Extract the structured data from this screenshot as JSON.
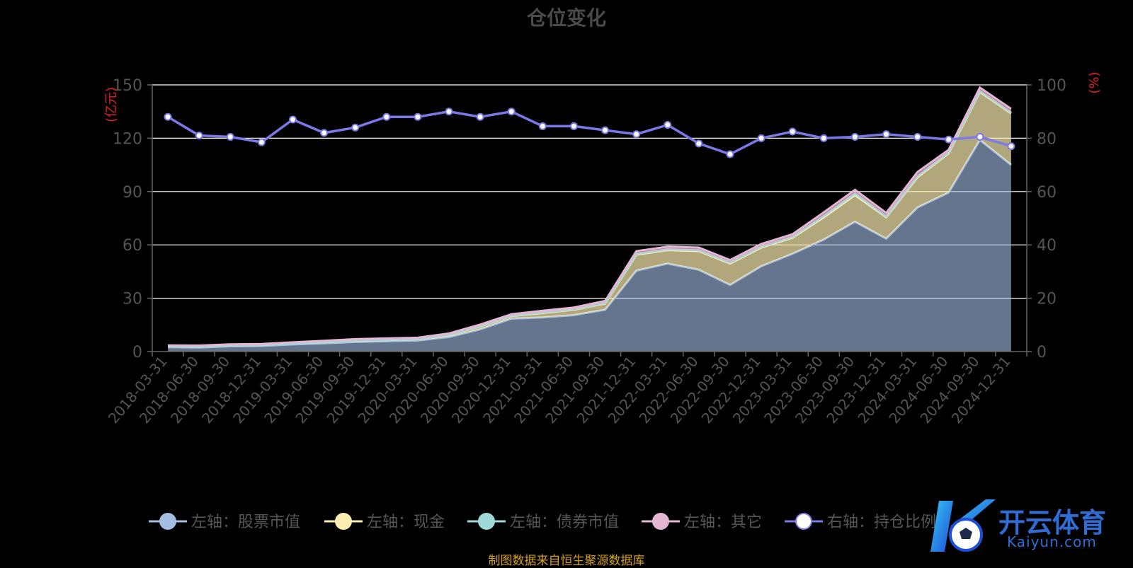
{
  "chart_data": {
    "type": "area",
    "title": "仓位变化",
    "ylabel_left": "(亿元)",
    "ylabel_right": "(%)",
    "y_left_lim": [
      0,
      150
    ],
    "y_left_ticks": [
      0,
      30,
      60,
      90,
      120,
      150
    ],
    "y_right_lim": [
      0,
      100
    ],
    "y_right_ticks": [
      0,
      20,
      40,
      60,
      80,
      100
    ],
    "stacked": true,
    "grid": true,
    "legend_position": "bottom",
    "categories": [
      "2018-03-31",
      "2018-06-30",
      "2018-09-30",
      "2018-12-31",
      "2019-03-31",
      "2019-06-30",
      "2019-09-30",
      "2019-12-31",
      "2020-03-31",
      "2020-06-30",
      "2020-09-30",
      "2020-12-31",
      "2021-03-31",
      "2021-06-30",
      "2021-09-30",
      "2021-12-31",
      "2022-03-31",
      "2022-06-30",
      "2022-09-30",
      "2022-12-31",
      "2023-03-31",
      "2023-06-30",
      "2023-09-30",
      "2023-12-31",
      "2024-03-31",
      "2024-06-30",
      "2024-09-30",
      "2024-12-31"
    ],
    "series": [
      {
        "name": "左轴：股票市值",
        "axis": "left",
        "color": "#a3bde3",
        "values": [
          2.5,
          2.3,
          3.0,
          3.2,
          4.0,
          4.6,
          5.4,
          5.8,
          6.2,
          8.2,
          12.5,
          18.5,
          19.2,
          20.5,
          23.5,
          45.5,
          49.5,
          46.0,
          37.5,
          48.0,
          55.0,
          63.0,
          73.0,
          63.5,
          81.0,
          89.5,
          119.0,
          105.0
        ]
      },
      {
        "name": "左轴：现金",
        "axis": "left",
        "color": "#fdedb1",
        "values": [
          0.5,
          0.5,
          0.5,
          0.5,
          0.6,
          0.8,
          0.8,
          0.8,
          0.8,
          1.2,
          1.6,
          1.5,
          2.5,
          3.0,
          3.5,
          9.0,
          7.5,
          10.5,
          12.0,
          10.5,
          9.0,
          12.5,
          15.0,
          12.0,
          17.0,
          22.0,
          27.0,
          29.0
        ]
      },
      {
        "name": "左轴：债券市值",
        "axis": "left",
        "color": "#9fd9d8",
        "values": [
          0.1,
          0.1,
          0.1,
          0.1,
          0.1,
          0.1,
          0.1,
          0.1,
          0.1,
          0.1,
          0.2,
          0.2,
          0.3,
          0.3,
          0.3,
          0.5,
          0.5,
          0.5,
          0.5,
          0.5,
          0.5,
          0.8,
          1.0,
          0.5,
          0.6,
          0.5,
          0.5,
          0.5
        ]
      },
      {
        "name": "左轴：其它",
        "axis": "left",
        "color": "#e5b6d3",
        "values": [
          0.4,
          0.5,
          0.5,
          0.5,
          0.5,
          0.6,
          0.7,
          0.7,
          0.7,
          0.7,
          0.9,
          0.8,
          1.0,
          1.0,
          1.2,
          1.5,
          1.5,
          1.5,
          1.5,
          1.5,
          1.5,
          2.0,
          2.0,
          2.0,
          2.4,
          1.5,
          2.0,
          2.0
        ]
      },
      {
        "name": "右轴：持仓比例",
        "axis": "right",
        "color": "#7b79e8",
        "type": "line",
        "values": [
          88,
          81,
          80.5,
          78.5,
          87,
          82,
          84,
          88,
          88,
          90,
          88,
          90,
          84.5,
          84.5,
          83,
          81.5,
          85,
          78,
          74,
          80,
          82.5,
          80,
          80.5,
          81.5,
          80.5,
          79.5,
          80.5,
          77
        ]
      }
    ]
  },
  "footer": {
    "source": "制图数据来自恒生聚源数据库"
  },
  "watermark": {
    "name_cn": "开云体育",
    "name_en": "Kaiyun.com",
    "logo_icon": "k-soccer-ball-logo-icon"
  }
}
